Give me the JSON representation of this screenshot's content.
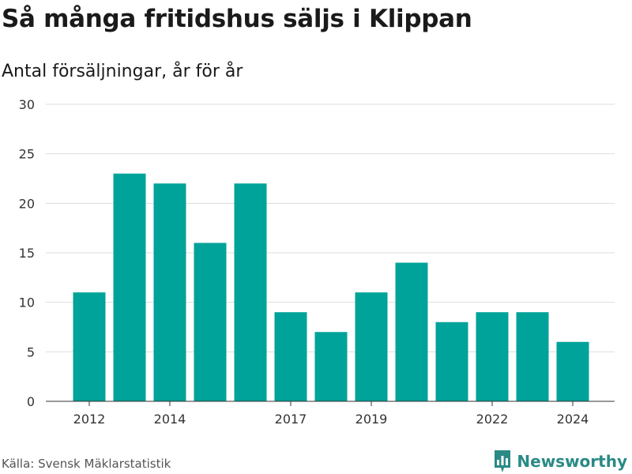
{
  "title": "Så många fritidshus säljs i Klippan",
  "subtitle": "Antal försäljningar, år för år",
  "source": "Källa: Svensk Mäklarstatistik",
  "brand": {
    "name": "Newsworthy",
    "icon": "newsworthy-logo-icon",
    "color": "#2a8a85"
  },
  "chart_data": {
    "type": "bar",
    "categories": [
      "2012",
      "2013",
      "2014",
      "2015",
      "2016",
      "2017",
      "2018",
      "2019",
      "2020",
      "2021",
      "2022",
      "2023",
      "2024"
    ],
    "values": [
      11,
      23,
      22,
      16,
      22,
      9,
      7,
      11,
      14,
      8,
      9,
      9,
      6
    ],
    "x_tick_labels": [
      "2012",
      "2014",
      "2017",
      "2019",
      "2022",
      "2024"
    ],
    "y_ticks": [
      0,
      5,
      10,
      15,
      20,
      25,
      30
    ],
    "ylim": [
      0,
      30
    ],
    "xlabel": "",
    "ylabel": "",
    "bar_color": "#00a399",
    "grid": true,
    "legend": "none"
  }
}
